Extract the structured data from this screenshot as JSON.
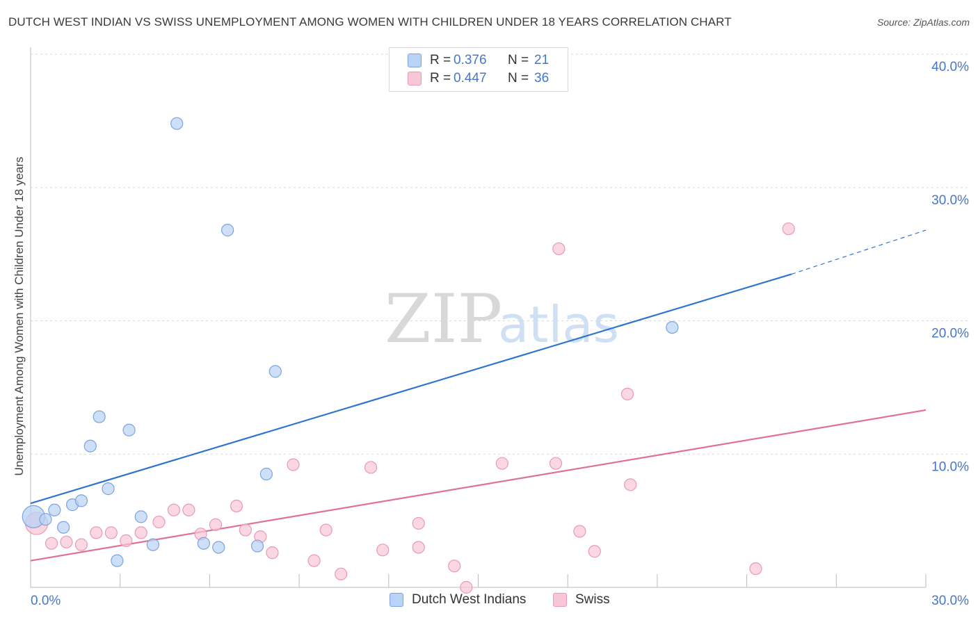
{
  "title": "DUTCH WEST INDIAN VS SWISS UNEMPLOYMENT AMONG WOMEN WITH CHILDREN UNDER 18 YEARS CORRELATION CHART",
  "source": "Source: ZipAtlas.com",
  "watermark": {
    "zip": "ZIP",
    "atlas": "atlas"
  },
  "legend_top": {
    "rows": [
      {
        "r_label": "R =",
        "r_value": "0.376",
        "n_label": "N =",
        "n_value": "21",
        "color": "#b8d3f5"
      },
      {
        "r_label": "R =",
        "r_value": "0.447",
        "n_label": "N =",
        "n_value": "36",
        "color": "#f8c6d6"
      }
    ]
  },
  "legend_bottom": [
    {
      "label": "Dutch West Indians",
      "color": "#b8d3f5"
    },
    {
      "label": "Swiss",
      "color": "#f8c6d6"
    }
  ],
  "chart_data": {
    "type": "scatter",
    "title": "DUTCH WEST INDIAN VS SWISS UNEMPLOYMENT AMONG WOMEN WITH CHILDREN UNDER 18 YEARS CORRELATION CHART",
    "xlabel": "",
    "ylabel": "Unemployment Among Women with Children Under 18 years",
    "xlim": [
      0,
      30
    ],
    "ylim": [
      0,
      40
    ],
    "x_tick_labels": [
      "0.0%",
      "30.0%"
    ],
    "y_ticks": [
      10,
      20,
      30,
      40
    ],
    "y_tick_labels": [
      "10.0%",
      "20.0%",
      "30.0%",
      "40.0%"
    ],
    "grid": true,
    "series": [
      {
        "name": "Dutch West Indians",
        "color": "#b8d3f5",
        "stroke": "#7aa3dd",
        "line_color": "#2f74d0",
        "trend": {
          "x0": 0,
          "y0": 6.3,
          "x1": 25.5,
          "y1": 23.5,
          "dash_to_x": 30,
          "dash_to_y": 26.8
        },
        "points": [
          {
            "x": 0.1,
            "y": 5.3,
            "big": true
          },
          {
            "x": 0.5,
            "y": 5.1
          },
          {
            "x": 0.8,
            "y": 5.8
          },
          {
            "x": 1.1,
            "y": 4.5
          },
          {
            "x": 1.4,
            "y": 6.2
          },
          {
            "x": 1.7,
            "y": 6.5
          },
          {
            "x": 2.0,
            "y": 10.6
          },
          {
            "x": 2.3,
            "y": 12.8
          },
          {
            "x": 2.6,
            "y": 7.4
          },
          {
            "x": 2.9,
            "y": 2.0
          },
          {
            "x": 3.3,
            "y": 11.8
          },
          {
            "x": 3.7,
            "y": 5.3
          },
          {
            "x": 4.1,
            "y": 3.2
          },
          {
            "x": 4.9,
            "y": 34.8
          },
          {
            "x": 5.8,
            "y": 3.3
          },
          {
            "x": 6.3,
            "y": 3.0
          },
          {
            "x": 6.6,
            "y": 26.8
          },
          {
            "x": 7.6,
            "y": 3.1
          },
          {
            "x": 7.9,
            "y": 8.5
          },
          {
            "x": 8.2,
            "y": 16.2
          },
          {
            "x": 21.5,
            "y": 19.5
          }
        ]
      },
      {
        "name": "Swiss",
        "color": "#f8c6d6",
        "stroke": "#e89ab4",
        "line_color": "#e0709a",
        "trend": {
          "x0": 0,
          "y0": 2.0,
          "x1": 30,
          "y1": 13.3
        },
        "points": [
          {
            "x": 0.2,
            "y": 4.8,
            "big": true
          },
          {
            "x": 0.7,
            "y": 3.3
          },
          {
            "x": 1.2,
            "y": 3.4
          },
          {
            "x": 1.7,
            "y": 3.2
          },
          {
            "x": 2.2,
            "y": 4.1
          },
          {
            "x": 2.7,
            "y": 4.1
          },
          {
            "x": 3.2,
            "y": 3.5
          },
          {
            "x": 3.7,
            "y": 4.1
          },
          {
            "x": 4.3,
            "y": 4.9
          },
          {
            "x": 4.8,
            "y": 5.8
          },
          {
            "x": 5.3,
            "y": 5.8
          },
          {
            "x": 5.7,
            "y": 4.0
          },
          {
            "x": 6.2,
            "y": 4.7
          },
          {
            "x": 6.9,
            "y": 6.1
          },
          {
            "x": 7.2,
            "y": 4.3
          },
          {
            "x": 7.7,
            "y": 3.8
          },
          {
            "x": 8.1,
            "y": 2.6
          },
          {
            "x": 8.8,
            "y": 9.2
          },
          {
            "x": 9.5,
            "y": 2.0
          },
          {
            "x": 9.9,
            "y": 4.3
          },
          {
            "x": 10.4,
            "y": 1.0
          },
          {
            "x": 11.4,
            "y": 9.0
          },
          {
            "x": 11.8,
            "y": 2.8
          },
          {
            "x": 13.0,
            "y": 4.8
          },
          {
            "x": 13.0,
            "y": 3.0
          },
          {
            "x": 14.2,
            "y": 1.6
          },
          {
            "x": 14.6,
            "y": 0.0
          },
          {
            "x": 15.8,
            "y": 9.3
          },
          {
            "x": 17.6,
            "y": 9.3
          },
          {
            "x": 17.7,
            "y": 25.4
          },
          {
            "x": 18.4,
            "y": 4.2
          },
          {
            "x": 18.9,
            "y": 2.7
          },
          {
            "x": 20.0,
            "y": 14.5
          },
          {
            "x": 20.1,
            "y": 7.7
          },
          {
            "x": 24.3,
            "y": 1.4
          },
          {
            "x": 25.4,
            "y": 26.9
          }
        ]
      }
    ]
  }
}
